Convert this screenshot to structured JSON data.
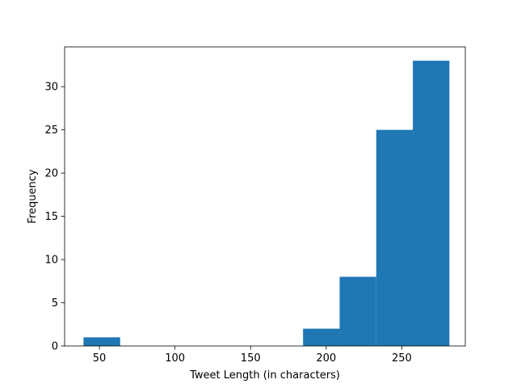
{
  "chart_data": {
    "type": "bar",
    "title": "",
    "xlabel": "Tweet Length (in characters)",
    "ylabel": "Frequency",
    "xlim": [
      27,
      292
    ],
    "ylim": [
      0,
      34.6
    ],
    "xticks": [
      50,
      100,
      150,
      200,
      250
    ],
    "yticks": [
      0,
      5,
      10,
      15,
      20,
      25,
      30
    ],
    "bins": [
      {
        "x0": 39.5,
        "x1": 63.7,
        "value": 1
      },
      {
        "x0": 63.7,
        "x1": 87.9,
        "value": 0
      },
      {
        "x0": 87.9,
        "x1": 112.1,
        "value": 0
      },
      {
        "x0": 112.1,
        "x1": 136.3,
        "value": 0
      },
      {
        "x0": 136.3,
        "x1": 160.5,
        "value": 0
      },
      {
        "x0": 160.5,
        "x1": 184.7,
        "value": 0
      },
      {
        "x0": 184.7,
        "x1": 208.9,
        "value": 2
      },
      {
        "x0": 208.9,
        "x1": 233.1,
        "value": 8
      },
      {
        "x0": 233.1,
        "x1": 257.3,
        "value": 25
      },
      {
        "x0": 257.3,
        "x1": 281.5,
        "value": 33
      }
    ],
    "grid": false,
    "legend": "none",
    "color": "#1f77b4"
  }
}
